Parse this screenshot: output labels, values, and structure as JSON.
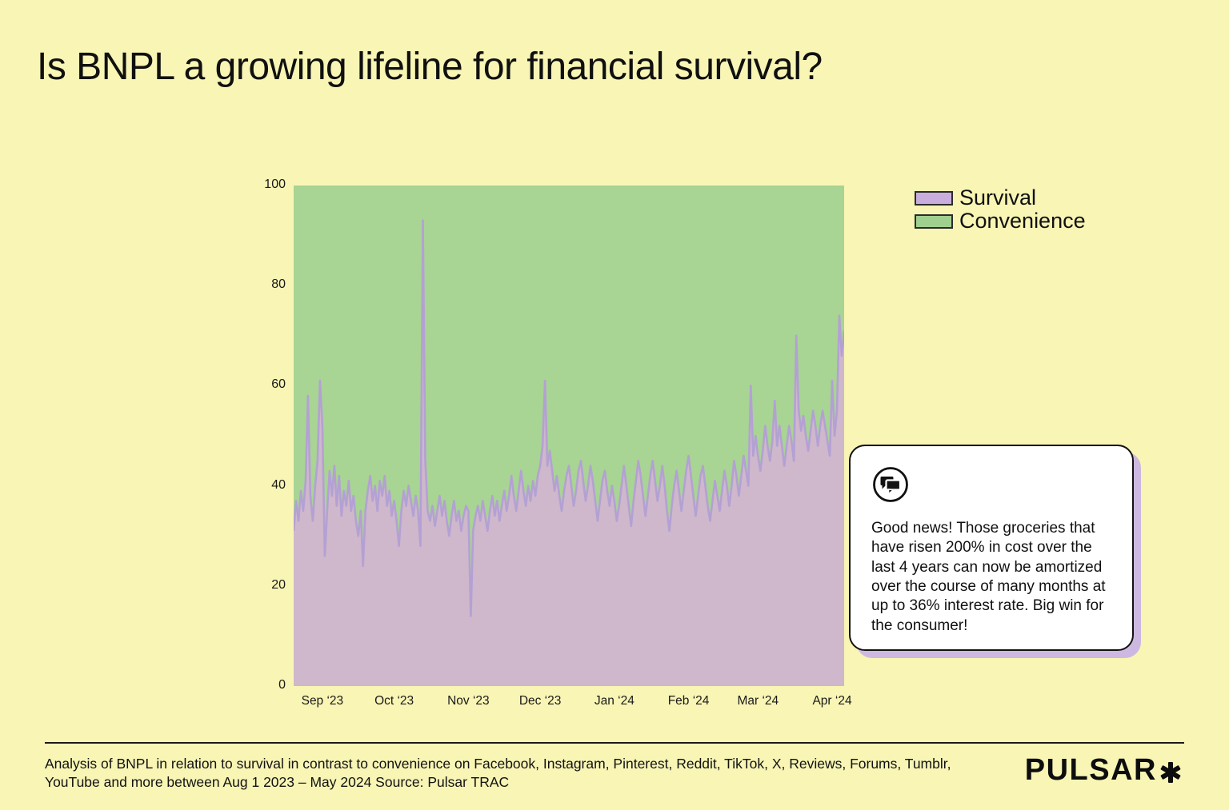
{
  "page": {
    "title": "Is BNPL a growing lifeline for financial survival?",
    "background_color": "#f8f5b5"
  },
  "legend": {
    "items": [
      {
        "label": "Survival",
        "swatch_color": "#c9aedd"
      },
      {
        "label": "Convenience",
        "swatch_color": "#a0d08f"
      }
    ]
  },
  "callout": {
    "icon": "chat-bubbles-icon",
    "text": "Good news! Those groceries that have risen 200% in cost over the last 4 years can now be amortized over the course of many months at up to 36% interest rate. Big win for the consumer!"
  },
  "footer": {
    "caption": "Analysis of BNPL in relation to survival in contrast to convenience on Facebook, Instagram, Pinterest, Reddit, TikTok, X, Reviews, Forums, Tumblr, YouTube and more between Aug 1 2023  – May 2024  Source: Pulsar TRAC",
    "brand": "PULSAR"
  },
  "chart_data": {
    "type": "area",
    "subtype": "100%-stacked-daily",
    "title": "",
    "xlabel": "",
    "ylabel": "",
    "ylim": [
      0,
      100
    ],
    "grid": false,
    "legend_position": "top-right",
    "y_ticks": [
      0,
      20,
      40,
      60,
      80,
      100
    ],
    "x_ticks": [
      {
        "label": "Sep ‘23",
        "day_index": 12
      },
      {
        "label": "Oct ‘23",
        "day_index": 42
      },
      {
        "label": "Nov ‘23",
        "day_index": 73
      },
      {
        "label": "Dec ‘23",
        "day_index": 103
      },
      {
        "label": "Jan ‘24",
        "day_index": 134
      },
      {
        "label": "Feb ‘24",
        "day_index": 165
      },
      {
        "label": "Mar ‘24",
        "day_index": 194
      },
      {
        "label": "Apr ‘24",
        "day_index": 225
      }
    ],
    "series": [
      {
        "name": "Survival",
        "fill_color": "#cfb7cc",
        "line_color": "#b4a1d3",
        "values": [
          31,
          37,
          33,
          39,
          35,
          41,
          58,
          38,
          33,
          40,
          45,
          61,
          52,
          26,
          35,
          43,
          38,
          44,
          36,
          42,
          34,
          39,
          36,
          41,
          35,
          38,
          33,
          30,
          35,
          24,
          35,
          39,
          42,
          37,
          40,
          35,
          41,
          38,
          42,
          36,
          39,
          34,
          37,
          33,
          28,
          35,
          39,
          36,
          40,
          37,
          34,
          38,
          35,
          28,
          93,
          45,
          35,
          33,
          36,
          32,
          35,
          38,
          34,
          37,
          33,
          30,
          34,
          37,
          33,
          35,
          31,
          34,
          36,
          35,
          14,
          31,
          34,
          36,
          33,
          37,
          34,
          31,
          35,
          38,
          34,
          37,
          33,
          36,
          39,
          35,
          38,
          42,
          38,
          35,
          39,
          43,
          39,
          36,
          40,
          37,
          41,
          38,
          42,
          44,
          48,
          61,
          44,
          47,
          43,
          39,
          42,
          38,
          35,
          39,
          42,
          44,
          40,
          36,
          39,
          43,
          45,
          41,
          37,
          40,
          44,
          41,
          37,
          33,
          37,
          41,
          43,
          39,
          36,
          40,
          37,
          33,
          36,
          40,
          44,
          40,
          36,
          32,
          37,
          41,
          45,
          42,
          38,
          34,
          38,
          42,
          45,
          41,
          37,
          40,
          44,
          40,
          35,
          31,
          36,
          40,
          43,
          39,
          35,
          39,
          43,
          46,
          42,
          38,
          34,
          38,
          42,
          44,
          40,
          36,
          33,
          37,
          41,
          38,
          35,
          39,
          43,
          40,
          36,
          40,
          45,
          42,
          38,
          42,
          46,
          43,
          40,
          60,
          46,
          50,
          46,
          43,
          47,
          52,
          48,
          45,
          49,
          57,
          48,
          52,
          48,
          44,
          48,
          52,
          49,
          45,
          70,
          55,
          51,
          54,
          50,
          47,
          51,
          55,
          52,
          48,
          52,
          55,
          52,
          49,
          46,
          61,
          50,
          55,
          74,
          66,
          71
        ]
      },
      {
        "name": "Convenience",
        "fill_color": "#a8d494",
        "values_note": "complement: 100 minus Survival at every point"
      }
    ]
  }
}
